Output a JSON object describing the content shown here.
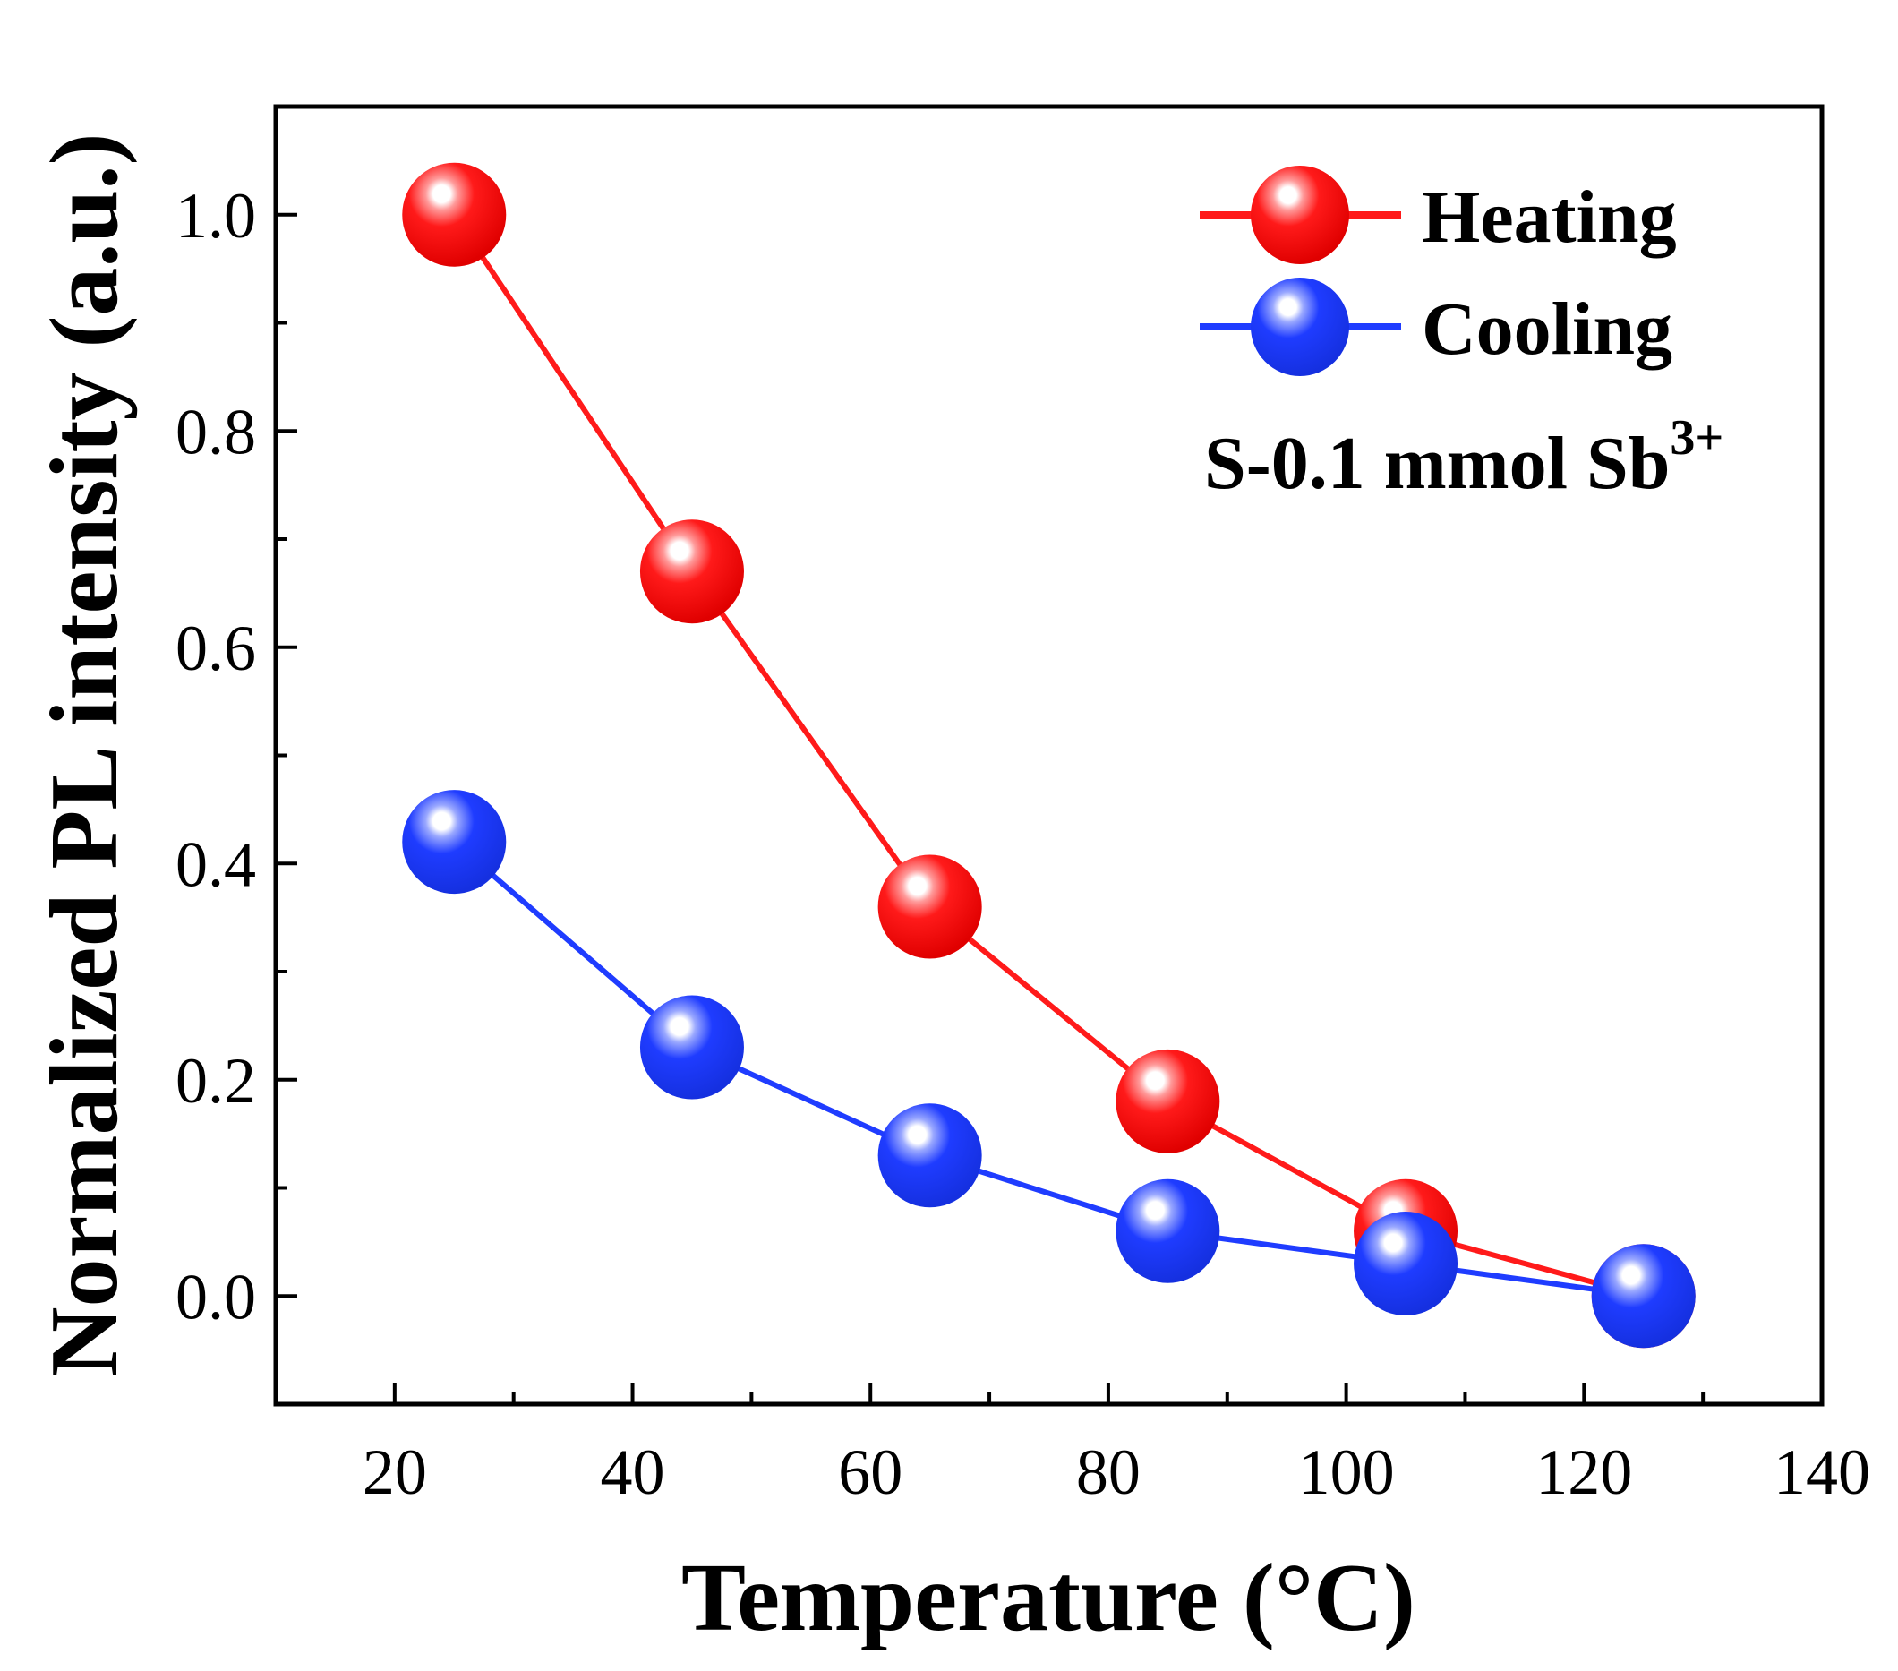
{
  "chart_data": {
    "type": "line",
    "title": "",
    "xlabel": "Temperature (°C)",
    "ylabel": "Normalized PL intensity (a.u.)",
    "xlim": [
      10,
      140
    ],
    "ylim": [
      -0.1,
      1.1
    ],
    "xticks": [
      20,
      40,
      60,
      80,
      100,
      120,
      140
    ],
    "xtick_labels": [
      "20",
      "40",
      "60",
      "80",
      "100",
      "120",
      "140"
    ],
    "yticks": [
      0.0,
      0.2,
      0.4,
      0.6,
      0.8,
      1.0
    ],
    "ytick_labels": [
      "0.0",
      "0.2",
      "0.4",
      "0.6",
      "0.8",
      "1.0"
    ],
    "grid": false,
    "legend_position": "top-right",
    "annotation": {
      "text": "S-0.1 mmol Sb",
      "superscript": "3+"
    },
    "series": [
      {
        "name": "Heating",
        "color": "#ff1a1a",
        "x": [
          25,
          45,
          65,
          85,
          105,
          125
        ],
        "y": [
          1.0,
          0.67,
          0.36,
          0.18,
          0.06,
          0.0
        ]
      },
      {
        "name": "Cooling",
        "color": "#1f3cff",
        "x": [
          25,
          45,
          65,
          85,
          105,
          125
        ],
        "y": [
          0.42,
          0.23,
          0.13,
          0.06,
          0.03,
          0.0
        ]
      }
    ]
  }
}
